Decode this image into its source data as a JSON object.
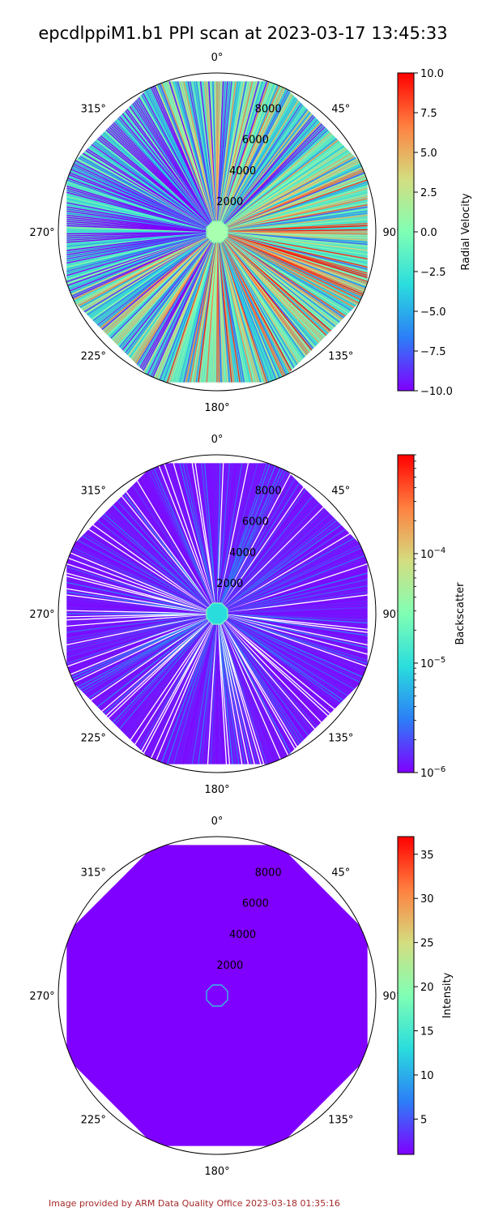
{
  "title": "epcdlppiM1.b1 PPI scan at 2023-03-17 13:45:33",
  "footer": "Image provided by ARM Data Quality Office 2023-03-18 01:35:16",
  "colormap": [
    "#8000ff",
    "#2c7ef7",
    "#2adddd",
    "#80ffb4",
    "#d4dd80",
    "#ff8040",
    "#ff0000"
  ],
  "chart_data": [
    {
      "type": "polar-ppi",
      "theta_ticks": [
        "0°",
        "45°",
        "90°",
        "135°",
        "180°",
        "225°",
        "270°",
        "315°"
      ],
      "r_ticks": [
        2000,
        4000,
        6000,
        8000
      ],
      "r_max": 9500,
      "colorbar": {
        "label": "Radial Velocity",
        "scale": "linear",
        "range": [
          -10.0,
          10.0
        ],
        "ticks": [
          "10.0",
          "7.5",
          "5.0",
          "2.5",
          "0.0",
          "−2.5",
          "−5.0",
          "−7.5",
          "−10.0"
        ]
      },
      "pattern": "mixed"
    },
    {
      "type": "polar-ppi",
      "theta_ticks": [
        "0°",
        "45°",
        "90°",
        "135°",
        "180°",
        "225°",
        "270°",
        "315°"
      ],
      "r_ticks": [
        2000,
        4000,
        6000,
        8000
      ],
      "r_max": 9500,
      "colorbar": {
        "label": "Backscatter",
        "scale": "log",
        "range": [
          1e-06,
          0.0008
        ],
        "major_ticks": [
          1e-06,
          1e-05,
          0.0001
        ],
        "tick_labels": [
          "10<sup>−6</sup>",
          "10<sup>−5</sup>",
          "10<sup>−4</sup>"
        ]
      },
      "pattern": "low"
    },
    {
      "type": "polar-ppi",
      "theta_ticks": [
        "0°",
        "45°",
        "90°",
        "135°",
        "180°",
        "225°",
        "270°",
        "315°"
      ],
      "r_ticks": [
        2000,
        4000,
        6000,
        8000
      ],
      "r_max": 9500,
      "colorbar": {
        "label": "Intensity",
        "scale": "linear",
        "range": [
          1.0,
          37.0
        ],
        "ticks": [
          "35",
          "30",
          "25",
          "20",
          "15",
          "10",
          "5"
        ]
      },
      "pattern": "solid"
    }
  ]
}
